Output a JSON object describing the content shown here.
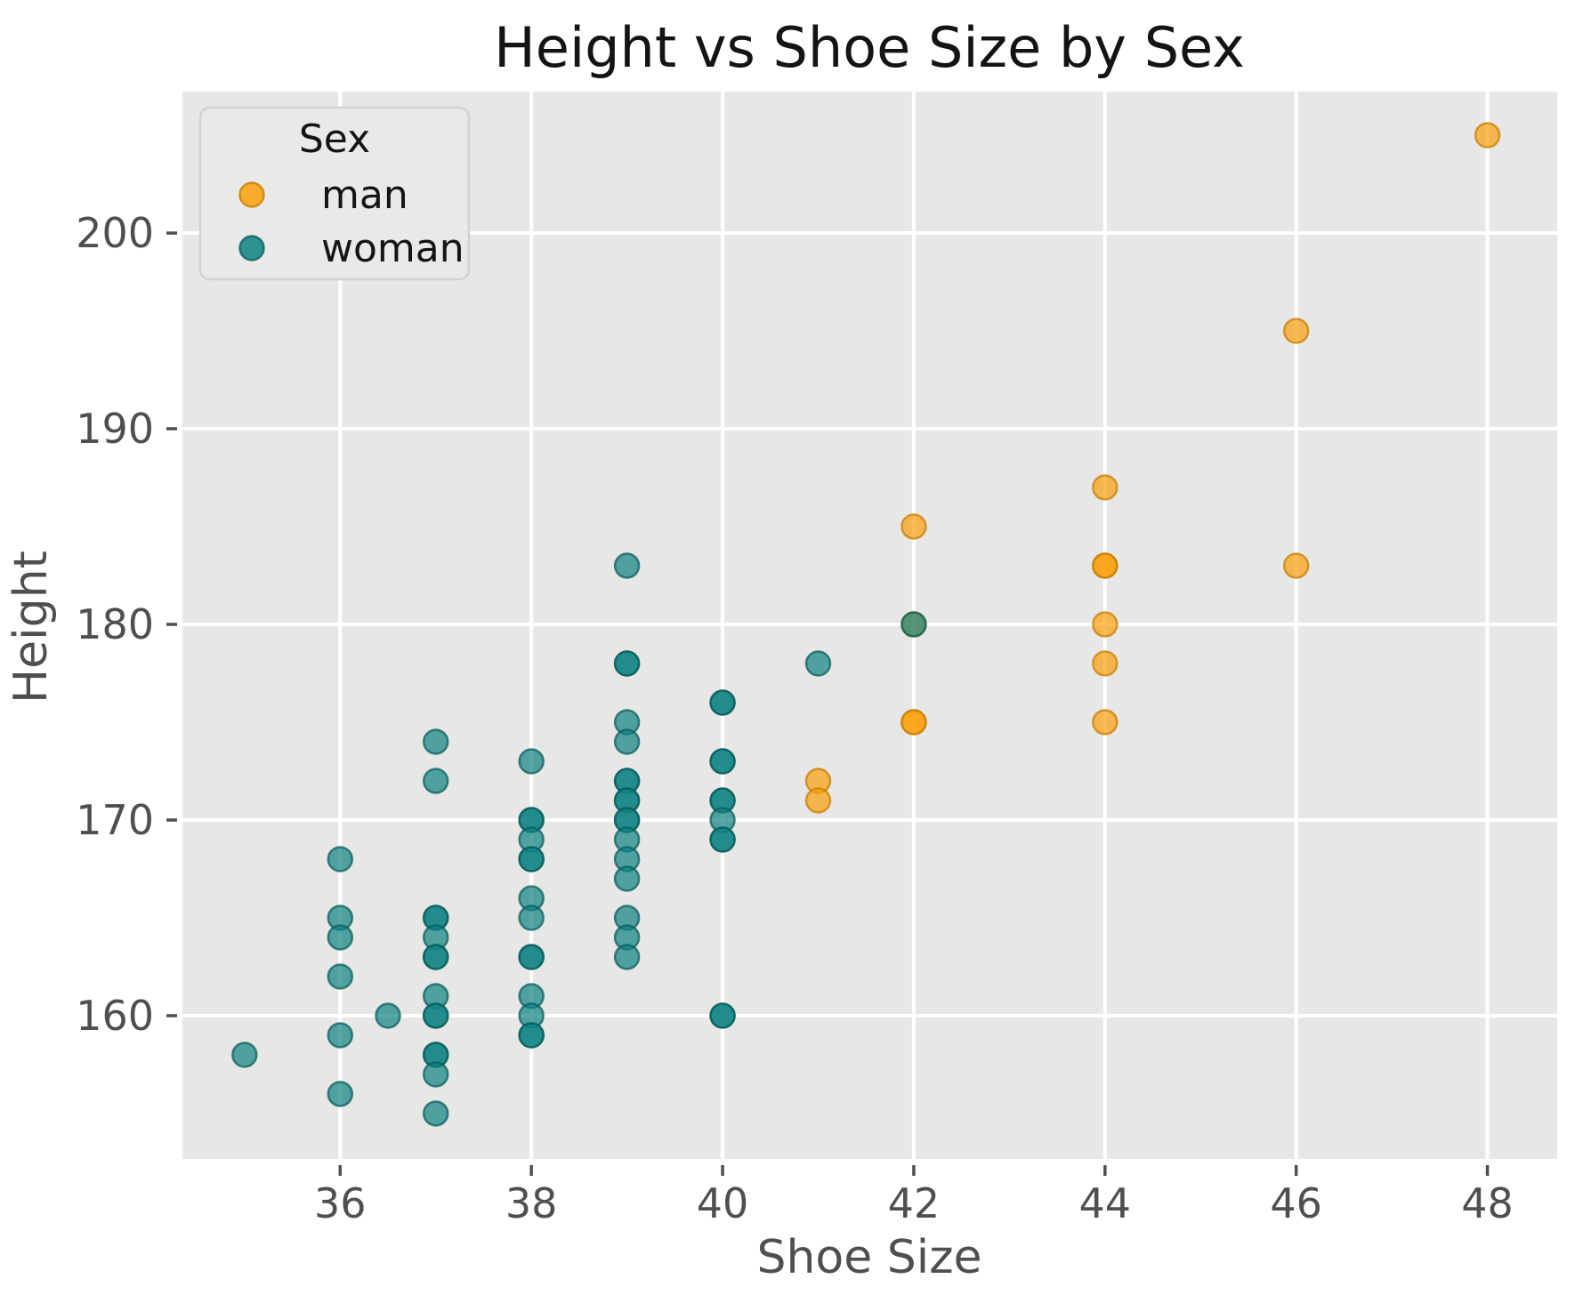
{
  "title": "Height vs Shoe Size by Sex",
  "legend": {
    "title": "Sex",
    "entries": [
      {
        "label": "man",
        "color": "#FCA00A",
        "edge": "#C87E00"
      },
      {
        "label": "woman",
        "color": "#0E8381",
        "edge": "#0A5F5E"
      }
    ]
  },
  "chart_data": {
    "type": "scatter",
    "title": "Height vs Shoe Size by Sex",
    "xlabel": "Shoe Size",
    "ylabel": "Height",
    "xlim": [
      34.35,
      48.73
    ],
    "ylim": [
      152.68,
      207.23
    ],
    "xticks": [
      36,
      38,
      40,
      42,
      44,
      46,
      48
    ],
    "yticks": [
      160,
      170,
      180,
      190,
      200
    ],
    "grid": true,
    "plot_background": "#E7E7E6",
    "grid_color": "#FFFFFF",
    "tick_color": "#4f4f4f",
    "marker_alpha": 0.7,
    "legend_position": "upper-left",
    "series": [
      {
        "name": "man",
        "color": "#FCA00A",
        "edge": "#C87E00",
        "points": [
          [
            41,
            172
          ],
          [
            41,
            171
          ],
          [
            42,
            185
          ],
          [
            42,
            180
          ],
          [
            42,
            175
          ],
          [
            42,
            175
          ],
          [
            44,
            187
          ],
          [
            44,
            183
          ],
          [
            44,
            183
          ],
          [
            44,
            180
          ],
          [
            44,
            178
          ],
          [
            44,
            175
          ],
          [
            46,
            195
          ],
          [
            46,
            183
          ],
          [
            48,
            205
          ]
        ]
      },
      {
        "name": "woman",
        "color": "#0E8381",
        "edge": "#0A5F5E",
        "points": [
          [
            35,
            158
          ],
          [
            36,
            168
          ],
          [
            36,
            165
          ],
          [
            36,
            164
          ],
          [
            36,
            162
          ],
          [
            36,
            159
          ],
          [
            36,
            156
          ],
          [
            36.5,
            160
          ],
          [
            37,
            174
          ],
          [
            37,
            172
          ],
          [
            37,
            165
          ],
          [
            37,
            165
          ],
          [
            37,
            164
          ],
          [
            37,
            163
          ],
          [
            37,
            163
          ],
          [
            37,
            161
          ],
          [
            37,
            160
          ],
          [
            37,
            160
          ],
          [
            37,
            158
          ],
          [
            37,
            158
          ],
          [
            37,
            157
          ],
          [
            37,
            155
          ],
          [
            38,
            173
          ],
          [
            38,
            170
          ],
          [
            38,
            170
          ],
          [
            38,
            169
          ],
          [
            38,
            168
          ],
          [
            38,
            168
          ],
          [
            38,
            166
          ],
          [
            38,
            165
          ],
          [
            38,
            163
          ],
          [
            38,
            163
          ],
          [
            38,
            161
          ],
          [
            38,
            160
          ],
          [
            38,
            159
          ],
          [
            38,
            159
          ],
          [
            39,
            183
          ],
          [
            39,
            178
          ],
          [
            39,
            178
          ],
          [
            39,
            175
          ],
          [
            39,
            174
          ],
          [
            39,
            172
          ],
          [
            39,
            172
          ],
          [
            39,
            171
          ],
          [
            39,
            171
          ],
          [
            39,
            170
          ],
          [
            39,
            170
          ],
          [
            39,
            169
          ],
          [
            39,
            168
          ],
          [
            39,
            167
          ],
          [
            39,
            165
          ],
          [
            39,
            164
          ],
          [
            39,
            163
          ],
          [
            40,
            176
          ],
          [
            40,
            176
          ],
          [
            40,
            173
          ],
          [
            40,
            173
          ],
          [
            40,
            171
          ],
          [
            40,
            171
          ],
          [
            40,
            170
          ],
          [
            40,
            169
          ],
          [
            40,
            169
          ],
          [
            40,
            160
          ],
          [
            40,
            160
          ],
          [
            41,
            178
          ],
          [
            42,
            180
          ]
        ]
      }
    ]
  }
}
